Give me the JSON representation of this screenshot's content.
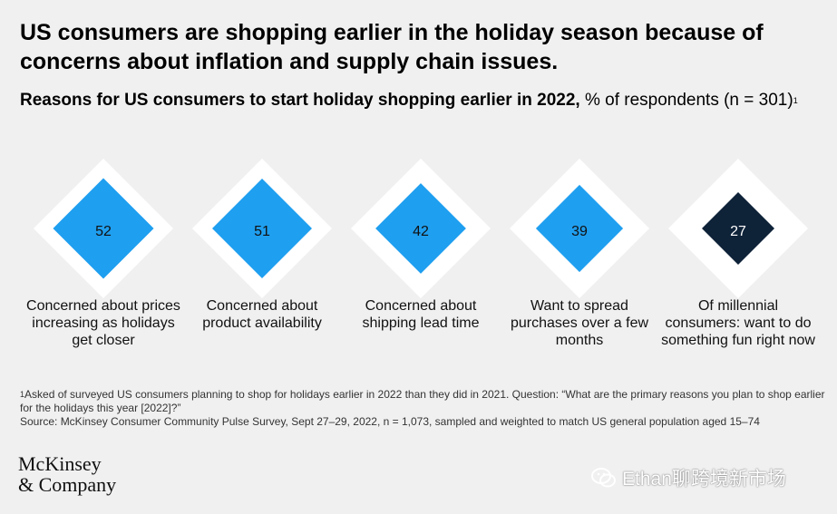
{
  "header": {
    "title": "US consumers are shopping earlier in the holiday season because of concerns about inflation and supply chain issues.",
    "subtitle_bold": "Reasons for US consumers to start holiday shopping earlier in 2022,",
    "subtitle_regular": " % of respondents (n = 301)",
    "subtitle_footnote_mark": "1"
  },
  "chart_data": {
    "type": "bar",
    "title": "Reasons for US consumers to start holiday shopping earlier in 2022, % of respondents (n = 301)",
    "categories": [
      "Concerned about prices increasing as holidays get closer",
      "Concerned about product availability",
      "Concerned about shipping lead time",
      "Want to spread purchases over a few months",
      "Of millennial consumers: want to do something fun right now"
    ],
    "values": [
      52,
      51,
      42,
      39,
      27
    ],
    "max": 100,
    "colors": [
      "#1f9ff0",
      "#1f9ff0",
      "#1f9ff0",
      "#1f9ff0",
      "#0e2238"
    ],
    "background_color": "#ffffff",
    "value_label_colors": [
      "#111111",
      "#111111",
      "#111111",
      "#111111",
      "#ffffff"
    ]
  },
  "footnote": {
    "mark": "1",
    "text": "Asked of surveyed US consumers planning to shop for holidays earlier in 2022 than they did in 2021. Question: “What are the primary reasons you plan to shop earlier for the holidays this year [2022]?”",
    "source": "Source: McKinsey Consumer Community Pulse Survey, Sept 27–29, 2022, n = 1,073, sampled and weighted to match US general population aged 15–74"
  },
  "logo": {
    "line1": "McKinsey",
    "line2": "& Company"
  },
  "watermark": {
    "text": "Ethan聊跨境新市场"
  }
}
